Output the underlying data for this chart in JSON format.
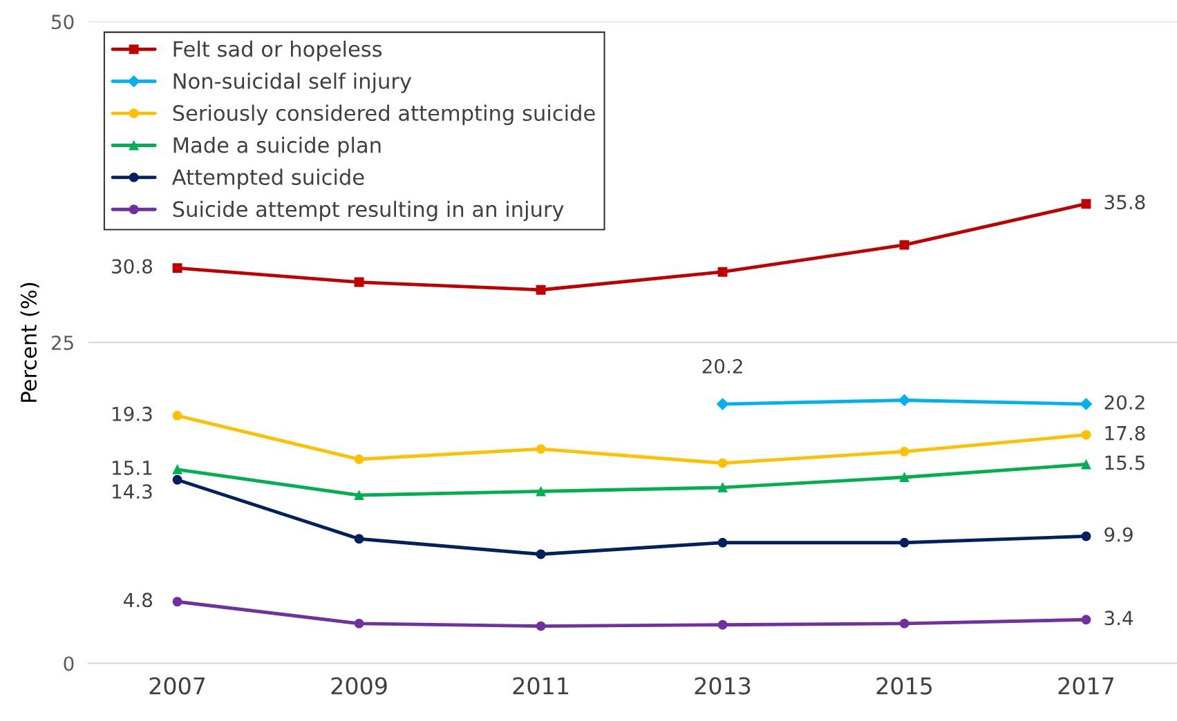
{
  "chart_data": {
    "type": "line",
    "ylabel": "Percent (%)",
    "categories": [
      "2007",
      "2009",
      "2011",
      "2013",
      "2015",
      "2017"
    ],
    "ylim": [
      0,
      50
    ],
    "yticks": [
      0,
      25,
      50
    ],
    "grid": "y",
    "legend": "top left",
    "series": [
      {
        "name": "Felt sad or hopeless",
        "color": "#c00000",
        "marker": "square",
        "values": [
          30.8,
          29.7,
          29.1,
          30.5,
          32.6,
          35.8
        ],
        "value_labels": [
          "30.8",
          null,
          null,
          null,
          null,
          "35.8"
        ]
      },
      {
        "name": "Non-suicidal self injury",
        "color": "#00b0f0",
        "marker": "diamond",
        "values": [
          null,
          null,
          null,
          20.2,
          20.5,
          20.2
        ],
        "value_labels": [
          null,
          null,
          null,
          "20.2",
          null,
          "20.2"
        ]
      },
      {
        "name": "Seriously considered attempting suicide",
        "color": "#ffc000",
        "marker": "circle",
        "values": [
          19.3,
          15.9,
          16.7,
          15.6,
          16.5,
          17.8
        ],
        "value_labels": [
          "19.3",
          null,
          null,
          null,
          null,
          "17.8"
        ]
      },
      {
        "name": "Made a suicide plan",
        "color": "#00b050",
        "marker": "triangle",
        "values": [
          15.1,
          13.1,
          13.4,
          13.7,
          14.5,
          15.5
        ],
        "value_labels": [
          "15.1",
          null,
          null,
          null,
          null,
          "15.5"
        ]
      },
      {
        "name": "Attempted suicide",
        "color": "#002060",
        "marker": "circle",
        "values": [
          14.3,
          9.7,
          8.5,
          9.4,
          9.4,
          9.9
        ],
        "value_labels": [
          "14.3",
          null,
          null,
          null,
          null,
          "9.9"
        ]
      },
      {
        "name": "Suicide attempt resulting in an injury",
        "color": "#7030a0",
        "marker": "circle",
        "values": [
          4.8,
          3.1,
          2.9,
          3.0,
          3.1,
          3.4
        ],
        "value_labels": [
          "4.8",
          null,
          null,
          null,
          null,
          "3.4"
        ]
      }
    ]
  }
}
